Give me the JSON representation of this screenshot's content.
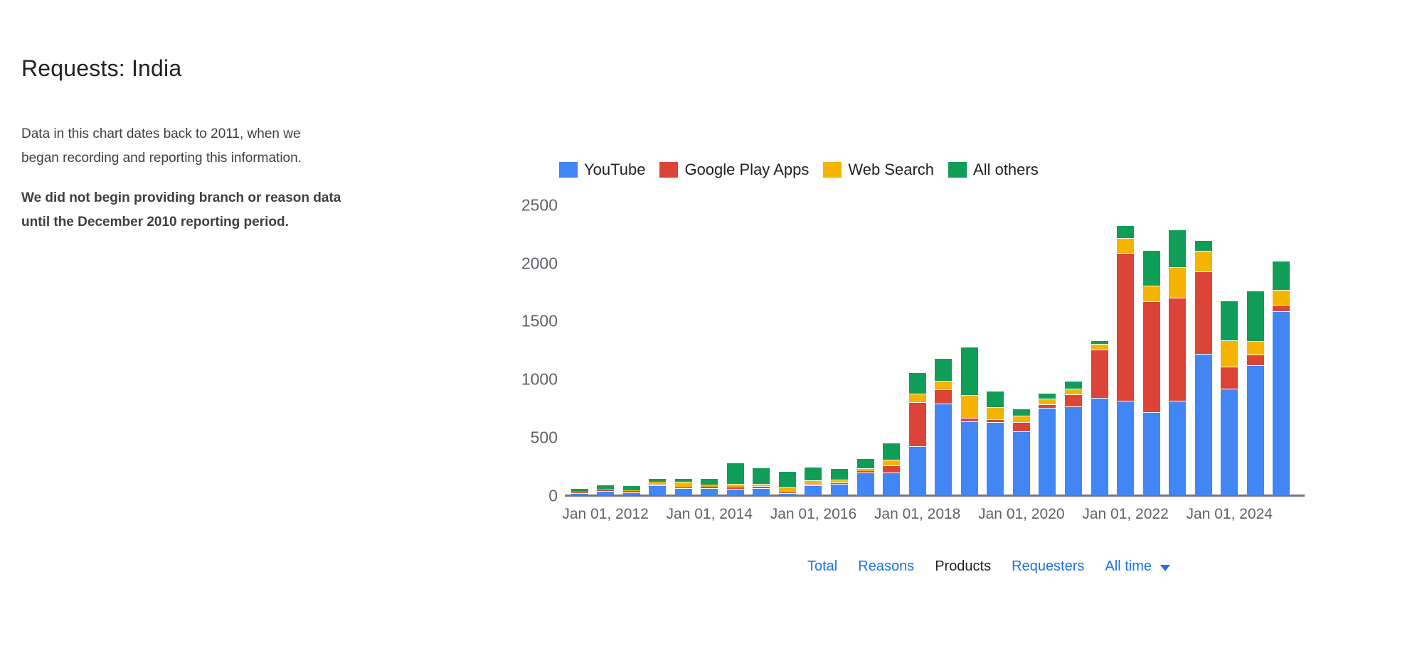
{
  "header": {
    "title": "Requests: India"
  },
  "intro": {
    "description": "Data in this chart dates back to 2011, when we began recording and reporting this information.",
    "note": "We did not begin providing branch or reason data until the December 2010 reporting period."
  },
  "chart_data": {
    "type": "bar",
    "stacked": true,
    "grid": false,
    "legend_position": "top",
    "title": "",
    "xlabel": "",
    "ylabel": "",
    "ylim": [
      0,
      2500
    ],
    "yticks": [
      0,
      500,
      1000,
      1500,
      2000,
      2500
    ],
    "x": [
      "Jul 01, 2011",
      "Jan 01, 2012",
      "Jul 01, 2012",
      "Jan 01, 2013",
      "Jul 01, 2013",
      "Jan 01, 2014",
      "Jul 01, 2014",
      "Jan 01, 2015",
      "Jul 01, 2015",
      "Jan 01, 2016",
      "Jul 01, 2016",
      "Jan 01, 2017",
      "Jul 01, 2017",
      "Jan 01, 2018",
      "Jul 01, 2018",
      "Jan 01, 2019",
      "Jul 01, 2019",
      "Jan 01, 2020",
      "Jul 01, 2020",
      "Jan 01, 2021",
      "Jul 01, 2021",
      "Jan 01, 2022",
      "Jul 01, 2022",
      "Jan 01, 2023",
      "Jul 01, 2023",
      "Jan 01, 2024",
      "Jul 01, 2024",
      "Jan 01, 2025"
    ],
    "xtick_labels": [
      "Jan 01, 2012",
      "Jan 01, 2014",
      "Jan 01, 2016",
      "Jan 01, 2018",
      "Jan 01, 2020",
      "Jan 01, 2022",
      "Jan 01, 2024"
    ],
    "series": [
      {
        "name": "YouTube",
        "color": "#4285F4",
        "values": [
          20,
          40,
          29,
          88,
          64,
          64,
          57,
          63,
          20,
          88,
          100,
          196,
          200,
          427,
          793,
          640,
          636,
          554,
          758,
          768,
          840,
          819,
          721,
          819,
          1222,
          922,
          1126,
          1586
        ]
      },
      {
        "name": "Google Play Apps",
        "color": "#DB4437",
        "values": [
          6,
          9,
          10,
          16,
          4,
          14,
          12,
          21,
          9,
          16,
          16,
          14,
          62,
          378,
          122,
          32,
          24,
          77,
          31,
          102,
          415,
          1274,
          951,
          885,
          711,
          190,
          86,
          55
        ]
      },
      {
        "name": "Web Search",
        "color": "#F4B400",
        "values": [
          8,
          9,
          10,
          13,
          49,
          14,
          29,
          18,
          40,
          27,
          19,
          27,
          46,
          72,
          74,
          192,
          102,
          56,
          45,
          51,
          49,
          123,
          138,
          263,
          178,
          228,
          118,
          129
        ]
      },
      {
        "name": "All others",
        "color": "#0F9D58",
        "values": [
          32,
          37,
          38,
          33,
          34,
          59,
          184,
          141,
          141,
          120,
          102,
          86,
          147,
          188,
          198,
          421,
          143,
          61,
          53,
          68,
          32,
          114,
          307,
          327,
          92,
          338,
          434,
          255
        ]
      }
    ]
  },
  "controls": {
    "tabs": [
      {
        "label": "Total",
        "active": false
      },
      {
        "label": "Reasons",
        "active": false
      },
      {
        "label": "Products",
        "active": true
      },
      {
        "label": "Requesters",
        "active": false
      }
    ],
    "time_filter": {
      "label": "All time",
      "icon": "caret-down-icon"
    }
  },
  "colors": {
    "link": "#1A73E8",
    "title_text": "#202124",
    "body_text": "#3C4043",
    "axis_text": "#5F6368",
    "axis_line": "#757575"
  }
}
